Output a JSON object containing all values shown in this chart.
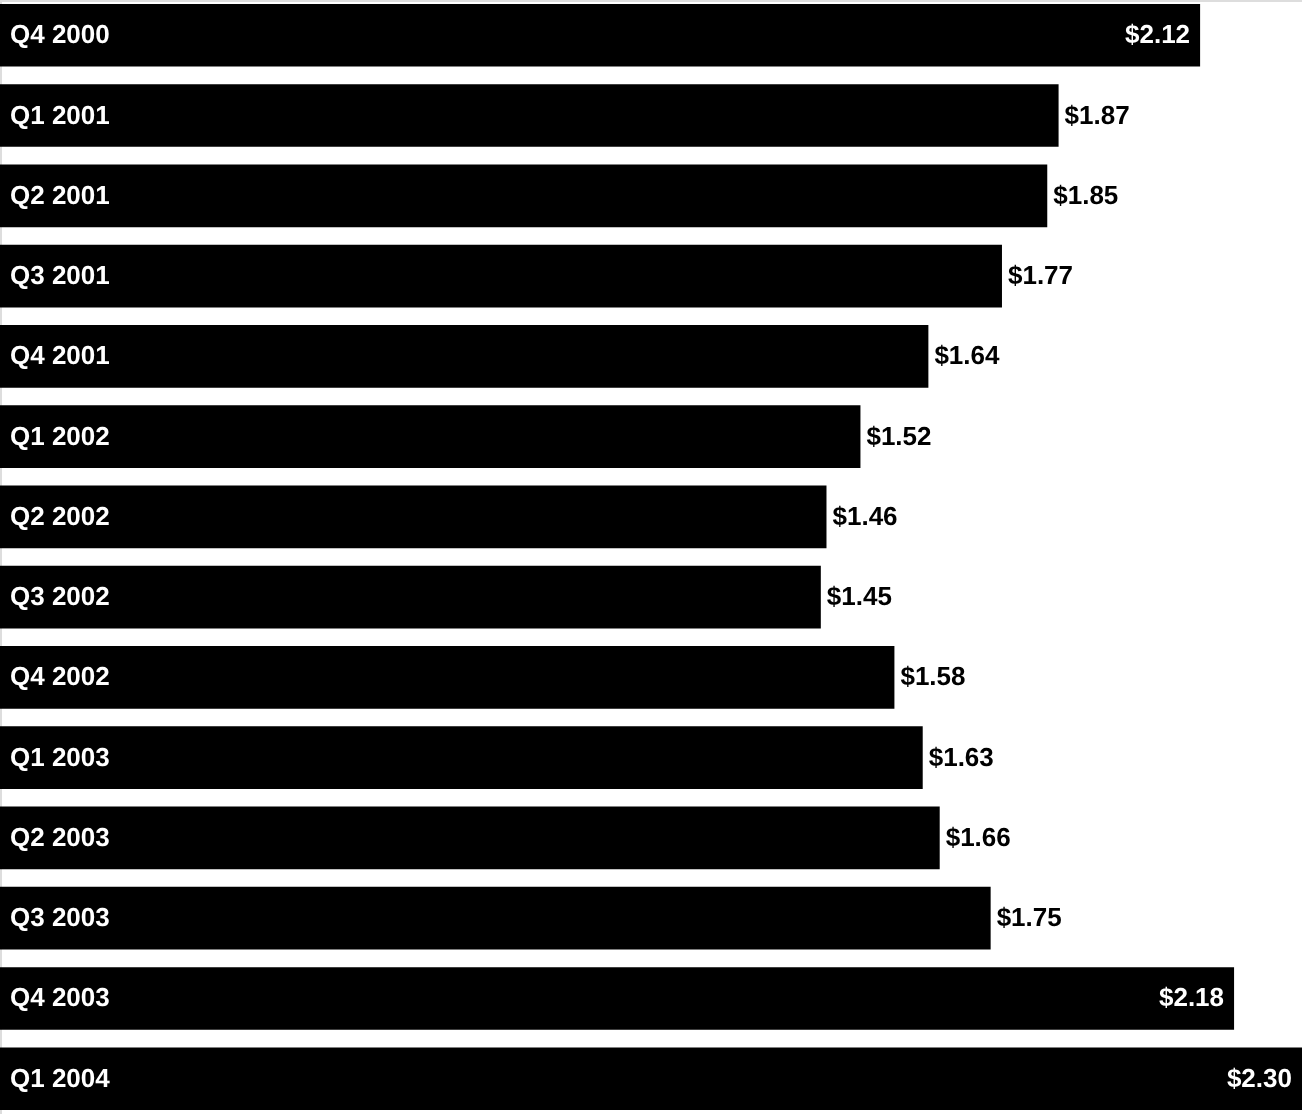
{
  "chart_data": {
    "type": "bar",
    "orientation": "horizontal",
    "categories": [
      "Q4 2000",
      "Q1 2001",
      "Q2 2001",
      "Q3 2001",
      "Q4 2001",
      "Q1 2002",
      "Q2 2002",
      "Q3 2002",
      "Q4 2002",
      "Q1 2003",
      "Q2 2003",
      "Q3 2003",
      "Q4 2003",
      "Q1 2004"
    ],
    "values": [
      2.12,
      1.87,
      1.85,
      1.77,
      1.64,
      1.52,
      1.46,
      1.45,
      1.58,
      1.63,
      1.66,
      1.75,
      2.18,
      2.3
    ],
    "value_labels": [
      "$2.12",
      "$1.87",
      "$1.85",
      "$1.77",
      "$1.64",
      "$1.52",
      "$1.46",
      "$1.45",
      "$1.58",
      "$1.63",
      "$1.66",
      "$1.75",
      "$2.18",
      "$2.30"
    ],
    "color": "#000000",
    "xlim": [
      0,
      2.3
    ],
    "tick_labels": false
  }
}
